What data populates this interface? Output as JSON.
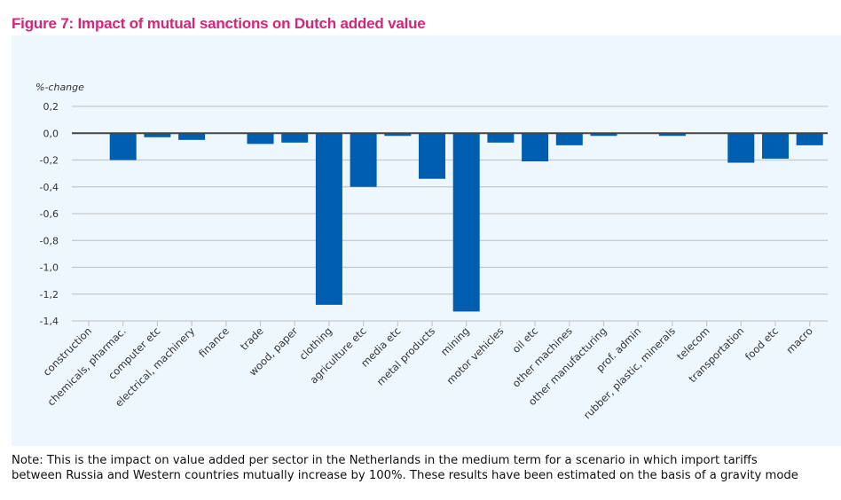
{
  "figure": {
    "title": "Figure 7: Impact of mutual sanctions on Dutch added value",
    "note_line1": "Note: This is the impact on value added per sector in the Netherlands in the medium term for a scenario in which import tariffs",
    "note_line2": "between Russia and Western countries mutually increase by 100%. These results have been estimated on the basis of a gravity mode"
  },
  "colors": {
    "title": "#d6247a",
    "bar": "#005eb0",
    "panel_background": "#eef7fe",
    "gridline": "#c4c8cc",
    "zero_line": "#444444"
  },
  "chart_data": {
    "type": "bar",
    "title": "Figure 7: Impact of mutual sanctions on Dutch added value",
    "xlabel": "",
    "ylabel": "%-change",
    "ylim": [
      -1.4,
      0.2
    ],
    "yticks": [
      0.2,
      0.0,
      -0.2,
      -0.4,
      -0.6,
      -0.8,
      -1.0,
      -1.2,
      -1.4
    ],
    "ytick_labels": [
      "0,2",
      "0,0",
      "-0,2",
      "-0,4",
      "-0,6",
      "-0,8",
      "-1,0",
      "-1,2",
      "-1,4"
    ],
    "grid": true,
    "legend": "none",
    "categories": [
      "construction",
      "chemicals, pharmac.",
      "computer etc",
      "electrical, machinery",
      "finance",
      "trade",
      "wood, paper",
      "clothing",
      "agriculture etc",
      "media etc",
      "metal products",
      "mining",
      "motor vehicles",
      "oil etc",
      "other machines",
      "other manufacturing",
      "prof. admin",
      "rubber, plastic, minerals",
      "telecom",
      "transportation",
      "food etc",
      "macro"
    ],
    "values": [
      0.0,
      -0.2,
      -0.03,
      -0.05,
      0.0,
      -0.08,
      -0.07,
      -1.28,
      -0.4,
      -0.02,
      -0.34,
      -1.33,
      -0.07,
      -0.21,
      -0.09,
      -0.02,
      0.0,
      -0.02,
      0.0,
      -0.22,
      -0.19,
      -0.09
    ]
  }
}
